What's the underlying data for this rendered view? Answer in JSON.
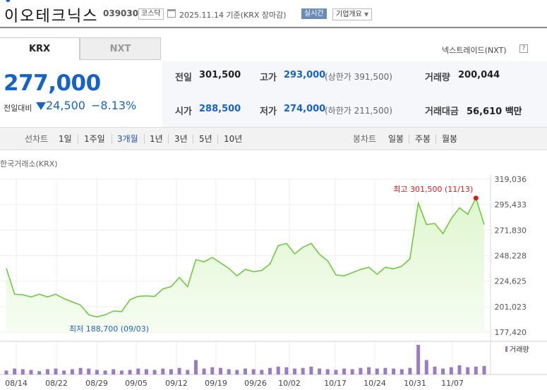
{
  "header": {
    "company_name": "이오테크닉스",
    "code": "039030",
    "market": "코스닥",
    "basis": "2025.11.14  기준(KRX 장마감)",
    "realtime": "실시간",
    "company_info": "기업개요"
  },
  "tabs": {
    "krx": "KRX",
    "nxt": "NXT"
  },
  "nxt_link": "넥스트레이드(NXT)",
  "help": "?",
  "price": {
    "current": "277,000",
    "change_label": "전일대비",
    "change": "24,500",
    "change_pct": "−8.13%"
  },
  "stats": {
    "prev_close_label": "전일",
    "prev_close": "301,500",
    "high_label": "고가",
    "high": "293,000",
    "upper_limit": "(상한가 391,500)",
    "volume_label": "거래량",
    "volume": "200,044",
    "open_label": "시가",
    "open": "288,500",
    "low_label": "저가",
    "low": "274,000",
    "lower_limit": "(하한가 211,500)",
    "value_label": "거래대금",
    "value": "56,610 백만"
  },
  "periods": {
    "line_label": "선차트",
    "line": [
      "1일",
      "1주일",
      "3개월",
      "1년",
      "3년",
      "5년",
      "10년"
    ],
    "selected": "3개월",
    "candle_label": "봉차트",
    "candle": [
      "일봉",
      "주봉",
      "월봉"
    ]
  },
  "source": "한국거래소(KRX)",
  "colors": {
    "price_line": "#66c935",
    "area_fill": "#dff6cf",
    "volume_bar": "#9b7bc4",
    "high": "#e8161a",
    "low": "#1d62c7"
  },
  "chart_data": {
    "type": "area",
    "y_ticks": [
      "319,036",
      "295,433",
      "271,830",
      "248,228",
      "224,625",
      "201,023",
      "177,420"
    ],
    "ylim": [
      177420,
      319036
    ],
    "x_ticks": [
      "08/14",
      "08/22",
      "08/29",
      "09/05",
      "09/12",
      "09/19",
      "09/26",
      "10/02",
      "10/17",
      "10/24",
      "10/31",
      "11/07"
    ],
    "high_annotation": "최고 301,500 (11/13)",
    "low_annotation": "최저 188,700 (09/03)",
    "high_value": 301500,
    "low_value": 188700,
    "volume_legend": "거래량",
    "series": [
      {
        "values": [
          236500,
          212500,
          212000,
          210000,
          212500,
          210000,
          212500,
          208500,
          205500,
          202500,
          193500,
          191500,
          193500,
          197000,
          196500,
          207500,
          210500,
          211000,
          210500,
          217500,
          219500,
          228000,
          219500,
          244500,
          242500,
          246500,
          241500,
          236500,
          229500,
          235500,
          233500,
          234500,
          240500,
          257500,
          259500,
          250000,
          256000,
          259500,
          249500,
          243500,
          230500,
          229500,
          232500,
          235500,
          237500,
          231000,
          237500,
          236000,
          238500,
          245500,
          297000,
          277000,
          278000,
          268500,
          282500,
          292500,
          286500,
          301500,
          277000
        ]
      }
    ],
    "volume": [
      6,
      9,
      8,
      7,
      5,
      8,
      9,
      6,
      8,
      10,
      9,
      7,
      6,
      8,
      6,
      7,
      9,
      8,
      7,
      9,
      8,
      10,
      7,
      22,
      9,
      11,
      10,
      8,
      7,
      9,
      8,
      7,
      10,
      12,
      11,
      9,
      10,
      12,
      9,
      8,
      7,
      9,
      8,
      10,
      11,
      9,
      10,
      9,
      8,
      10,
      45,
      22,
      12,
      9,
      11,
      14,
      11,
      12,
      13
    ]
  }
}
